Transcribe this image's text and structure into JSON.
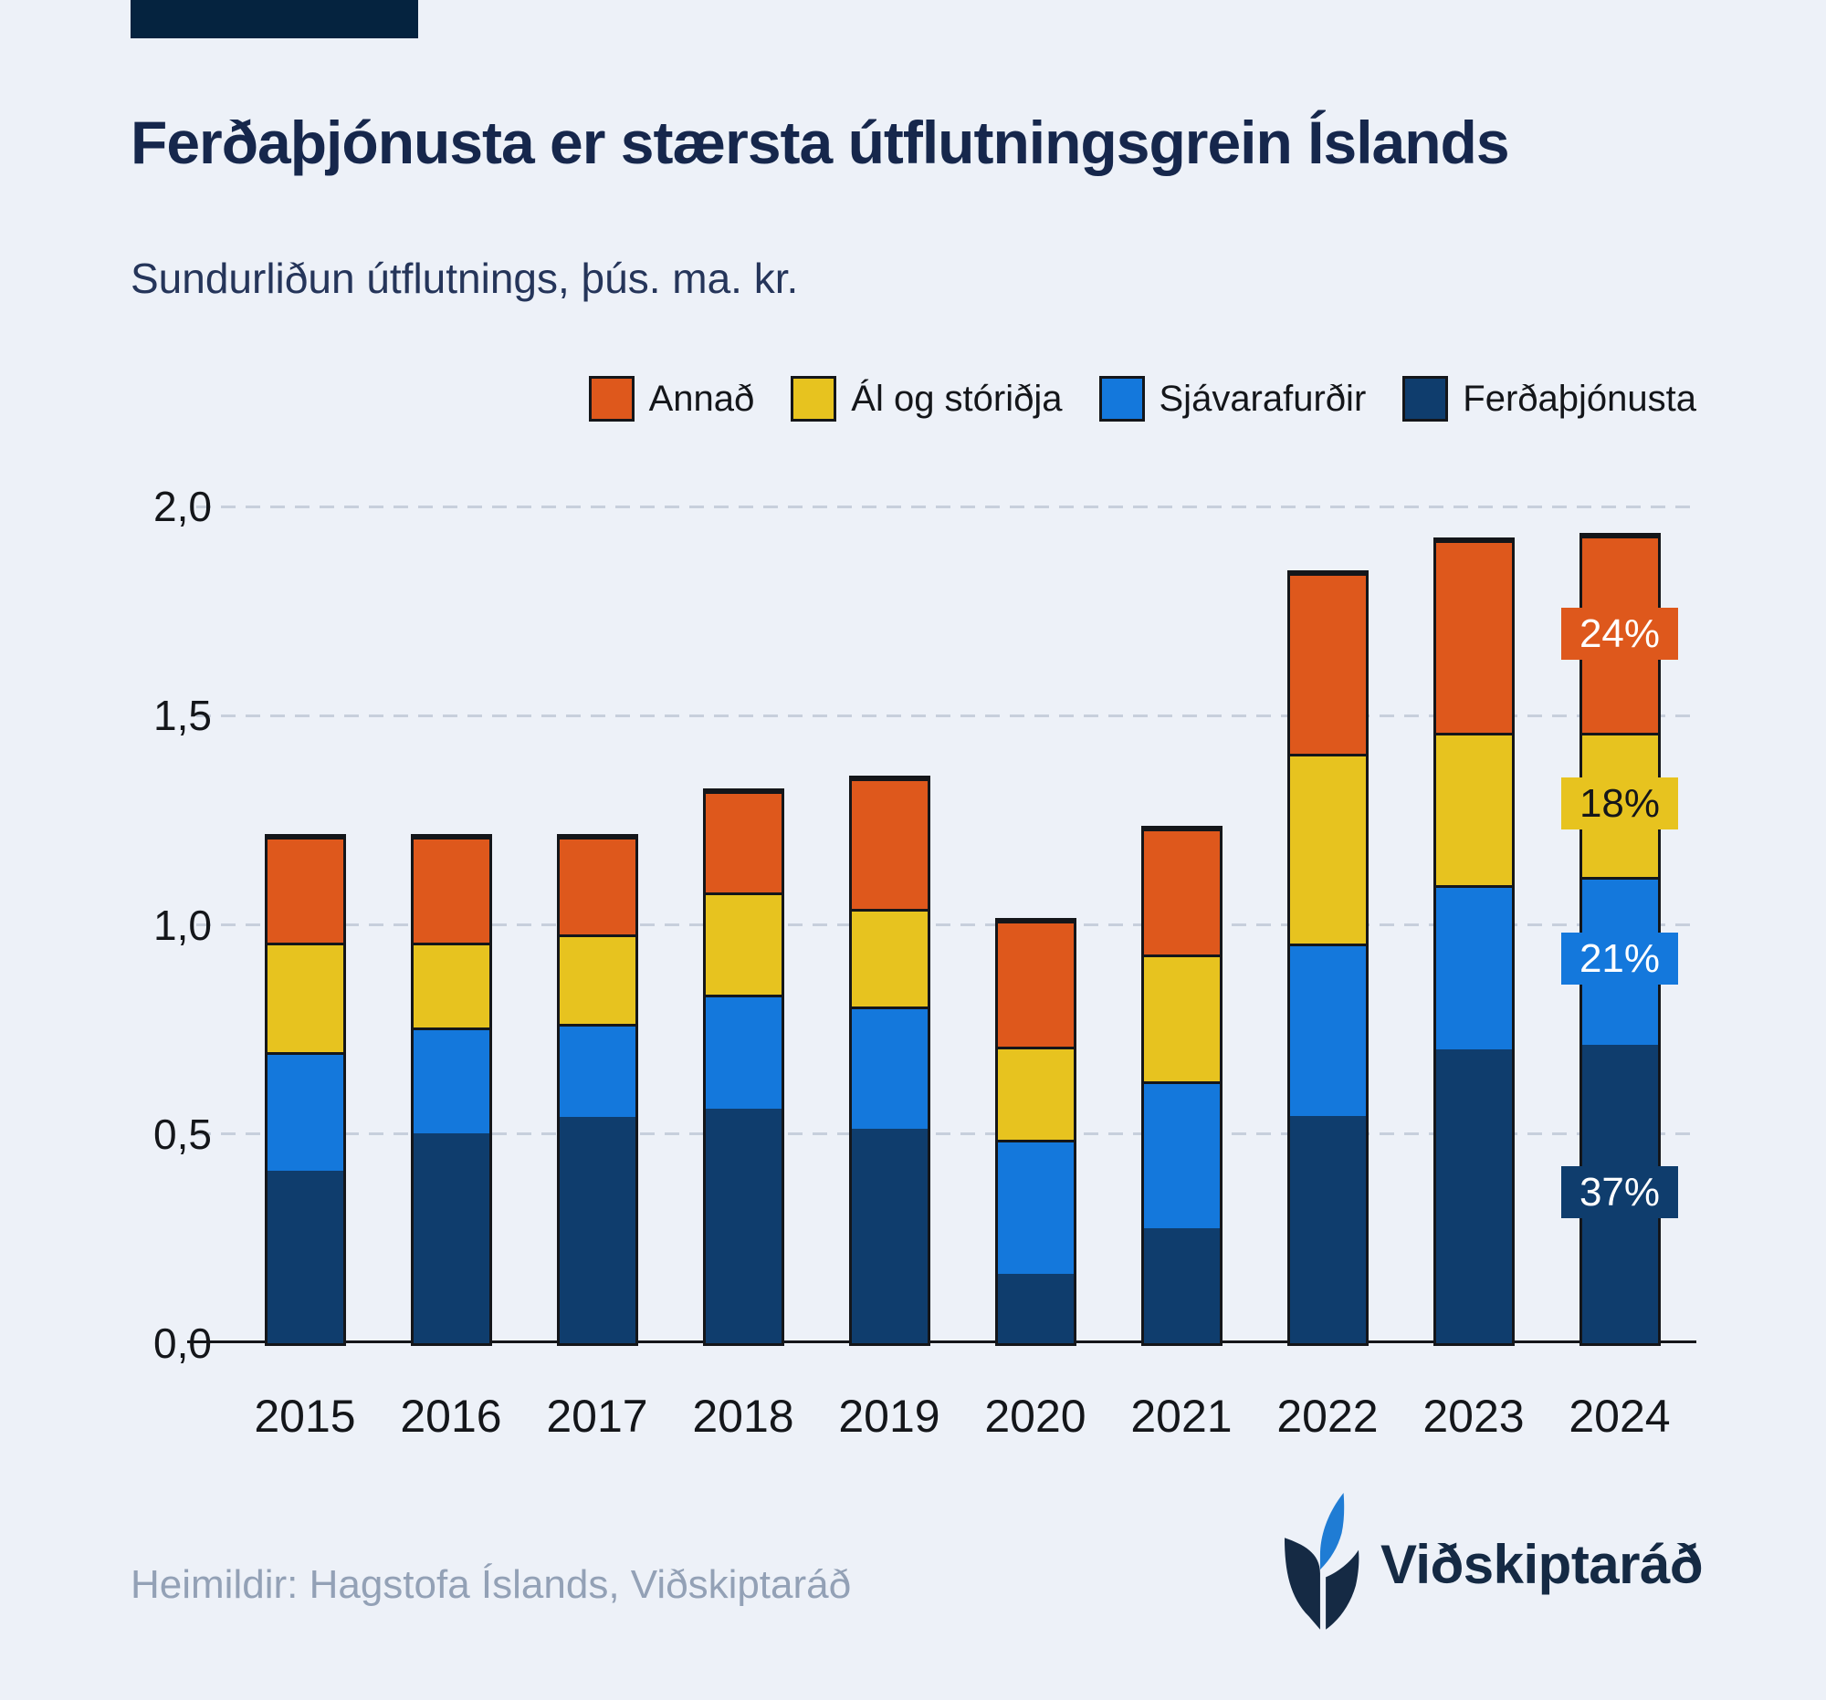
{
  "page": {
    "background": "#EDF1F8",
    "accent_bar_color": "#05233F",
    "text_dark": "#14161A",
    "title_color": "#16274C",
    "subtitle_color": "#25355A",
    "source_color": "#93A1B6"
  },
  "header": {
    "title": "Ferðaþjónusta er stærsta útflutningsgrein Íslands",
    "subtitle": "Sundurliðun útflutnings, þús. ma. kr."
  },
  "legend": {
    "items": [
      {
        "label": "Annað",
        "color": "#DE581C"
      },
      {
        "label": "Ál og stóriðja",
        "color": "#E7C31F"
      },
      {
        "label": "Sjávarafurðir",
        "color": "#1478DC"
      },
      {
        "label": "Ferðaþjónusta",
        "color": "#0F3D6D"
      }
    ]
  },
  "chart_data": {
    "type": "bar",
    "stacked": true,
    "title": "Ferðaþjónusta er stærsta útflutningsgrein Íslands",
    "subtitle": "Sundurliðun útflutnings, þús. ma. kr.",
    "categories": [
      "2015",
      "2016",
      "2017",
      "2018",
      "2019",
      "2020",
      "2021",
      "2022",
      "2023",
      "2024"
    ],
    "series": [
      {
        "name": "Ferðaþjónusta",
        "color": "#0F3D6D",
        "values": [
          0.42,
          0.51,
          0.55,
          0.57,
          0.52,
          0.17,
          0.28,
          0.55,
          0.71,
          0.72
        ]
      },
      {
        "name": "Sjávarafurðir",
        "color": "#1478DC",
        "values": [
          0.28,
          0.25,
          0.22,
          0.27,
          0.29,
          0.32,
          0.35,
          0.41,
          0.39,
          0.4
        ]
      },
      {
        "name": "Ál og stóriðja",
        "color": "#E7C31F",
        "values": [
          0.26,
          0.2,
          0.21,
          0.24,
          0.23,
          0.22,
          0.3,
          0.45,
          0.36,
          0.34
        ]
      },
      {
        "name": "Annað",
        "color": "#DE581C",
        "values": [
          0.25,
          0.25,
          0.23,
          0.24,
          0.31,
          0.3,
          0.3,
          0.43,
          0.46,
          0.47
        ]
      }
    ],
    "ylim": [
      0,
      2.0
    ],
    "yticks": [
      {
        "value": 0.0,
        "label": "0,0"
      },
      {
        "value": 0.5,
        "label": "0,5"
      },
      {
        "value": 1.0,
        "label": "1,0"
      },
      {
        "value": 1.5,
        "label": "1,5"
      },
      {
        "value": 2.0,
        "label": "2,0"
      }
    ],
    "grid": "horizontal-dashed",
    "legend_position": "top-right",
    "annotations": {
      "category": "2024",
      "labels": [
        {
          "series": "Ferðaþjónusta",
          "text": "37%",
          "text_color": "#FFFFFF"
        },
        {
          "series": "Sjávarafurðir",
          "text": "21%",
          "text_color": "#FFFFFF"
        },
        {
          "series": "Ál og stóriðja",
          "text": "18%",
          "text_color": "#14161A"
        },
        {
          "series": "Annað",
          "text": "24%",
          "text_color": "#FFFFFF"
        }
      ]
    }
  },
  "footer": {
    "source": "Heimildir: Hagstofa Íslands, Viðskiptaráð",
    "logo": {
      "text": "Viðskiptaráð",
      "navy": "#152A44",
      "blue": "#1F7CD4"
    }
  }
}
